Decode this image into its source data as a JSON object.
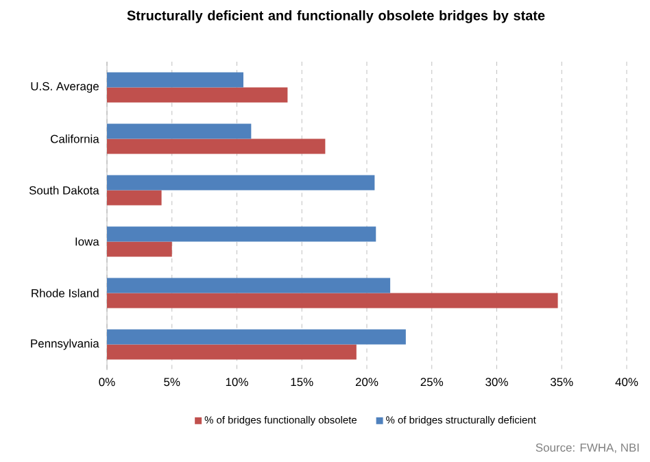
{
  "chart_data": {
    "type": "bar",
    "orientation": "horizontal",
    "title": "Structurally deficient and functionally obsolete bridges by state",
    "categories": [
      "U.S. Average",
      "California",
      "South Dakota",
      "Iowa",
      "Rhode Island",
      "Pennsylvania"
    ],
    "series": [
      {
        "name": "% of bridges functionally obsolete",
        "color": "#c0504d",
        "values": [
          13.9,
          16.8,
          4.2,
          5.0,
          34.7,
          19.2
        ]
      },
      {
        "name": "% of bridges structurally deficient",
        "color": "#4f81bd",
        "values": [
          10.5,
          11.1,
          20.6,
          20.7,
          21.8,
          23.0
        ]
      }
    ],
    "xlim": [
      0,
      40
    ],
    "xticks": [
      {
        "value": 0,
        "label": "0%"
      },
      {
        "value": 5,
        "label": "5%"
      },
      {
        "value": 10,
        "label": "10%"
      },
      {
        "value": 15,
        "label": "15%"
      },
      {
        "value": 20,
        "label": "20%"
      },
      {
        "value": 25,
        "label": "25%"
      },
      {
        "value": 30,
        "label": "30%"
      },
      {
        "value": 35,
        "label": "35%"
      },
      {
        "value": 40,
        "label": "40%"
      }
    ],
    "grid": "x",
    "legend": "bottom",
    "annotations": [
      "Source: FWHA, NBI"
    ]
  }
}
